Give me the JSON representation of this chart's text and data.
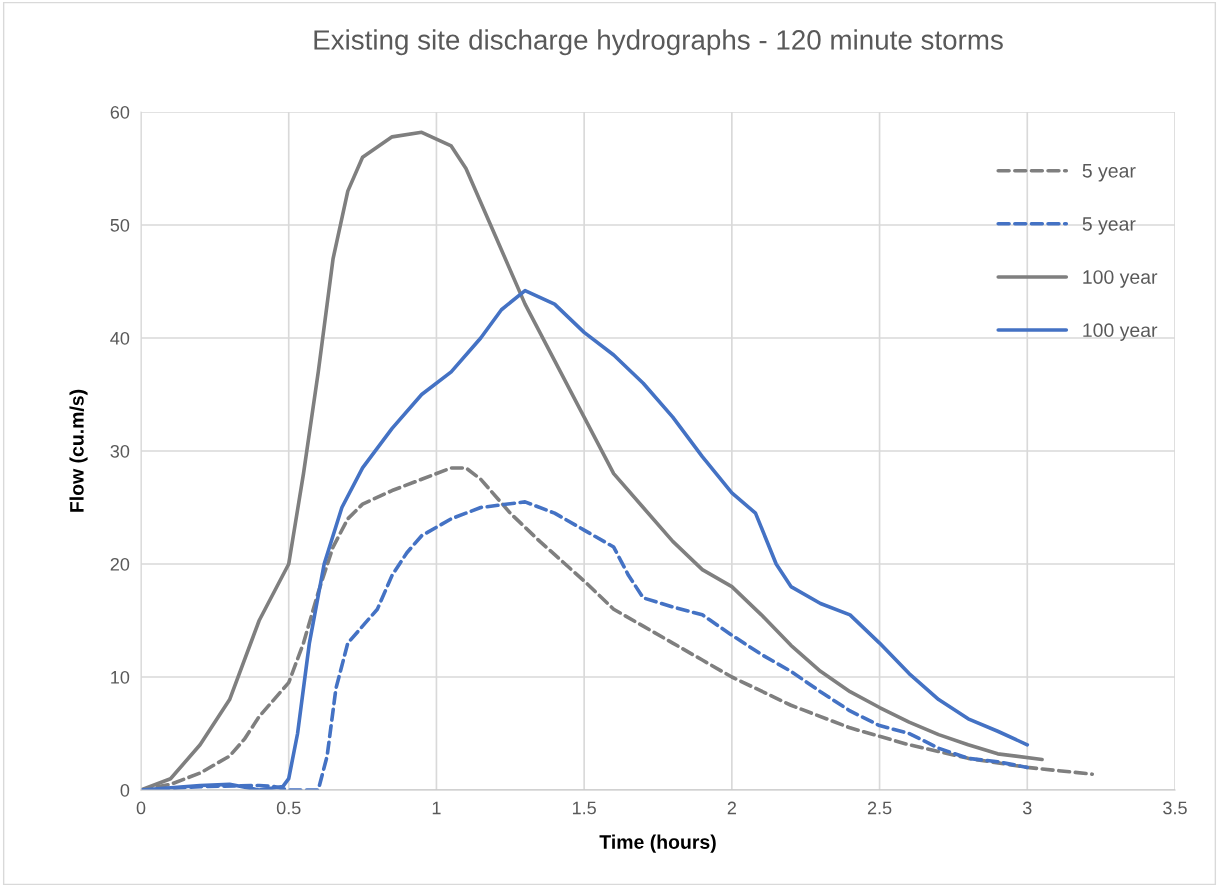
{
  "chart_data": {
    "type": "line",
    "title": "Existing site discharge hydrographs - 120 minute storms",
    "xlabel": "Time (hours)",
    "ylabel": "Flow (cu.m/s)",
    "xlim": [
      0,
      3.5
    ],
    "xticks": [
      0,
      0.5,
      1,
      1.5,
      2,
      2.5,
      3,
      3.5
    ],
    "ylim": [
      0,
      60
    ],
    "yticks": [
      0,
      10,
      20,
      30,
      40,
      50,
      60
    ],
    "grid": true,
    "legend": "right",
    "marker": "none",
    "series": [
      {
        "name": "5 year",
        "color": "#7f7f7f",
        "line_style": "dashed",
        "x": [
          0,
          0.1,
          0.2,
          0.3,
          0.35,
          0.4,
          0.5,
          0.55,
          0.6,
          0.65,
          0.7,
          0.75,
          0.85,
          0.95,
          1.05,
          1.1,
          1.15,
          1.25,
          1.35,
          1.5,
          1.6,
          1.7,
          1.8,
          1.9,
          2.0,
          2.2,
          2.4,
          2.6,
          2.8,
          3.0,
          3.22
        ],
        "values": [
          0,
          0.5,
          1.5,
          3,
          4.5,
          6.5,
          9.5,
          13,
          17.5,
          21.5,
          24,
          25.3,
          26.5,
          27.5,
          28.5,
          28.5,
          27.5,
          24.5,
          22,
          18.5,
          16,
          14.5,
          13,
          11.5,
          10,
          7.5,
          5.5,
          4,
          2.8,
          2,
          1.4
        ]
      },
      {
        "name": "5 year",
        "color": "#4472c4",
        "line_style": "dashed",
        "x": [
          0,
          0.2,
          0.4,
          0.45,
          0.5,
          0.6,
          0.63,
          0.66,
          0.7,
          0.75,
          0.8,
          0.85,
          0.9,
          0.95,
          1.05,
          1.15,
          1.3,
          1.4,
          1.5,
          1.6,
          1.65,
          1.7,
          1.8,
          1.9,
          2.0,
          2.1,
          2.2,
          2.3,
          2.4,
          2.5,
          2.6,
          2.7,
          2.8,
          2.9,
          3.0
        ],
        "values": [
          0,
          0.3,
          0.4,
          0.3,
          0,
          0,
          3,
          9,
          13,
          14.5,
          16,
          19,
          21,
          22.5,
          24,
          25,
          25.5,
          24.5,
          23,
          21.5,
          19,
          17,
          16.2,
          15.5,
          13.7,
          12,
          10.5,
          8.7,
          7,
          5.7,
          5,
          3.7,
          2.8,
          2.5,
          2
        ]
      },
      {
        "name": "100 year",
        "color": "#7f7f7f",
        "line_style": "solid",
        "x": [
          0,
          0.1,
          0.2,
          0.3,
          0.4,
          0.5,
          0.55,
          0.6,
          0.65,
          0.7,
          0.75,
          0.85,
          0.95,
          1.05,
          1.1,
          1.2,
          1.3,
          1.4,
          1.5,
          1.6,
          1.7,
          1.8,
          1.9,
          2.0,
          2.1,
          2.2,
          2.3,
          2.4,
          2.5,
          2.6,
          2.7,
          2.8,
          2.9,
          3.05
        ],
        "values": [
          0,
          1,
          4,
          8,
          15,
          20,
          28,
          37,
          47,
          53,
          56,
          57.8,
          58.2,
          57,
          55,
          49,
          43,
          38,
          33,
          28,
          25,
          22,
          19.5,
          18,
          15.5,
          12.8,
          10.5,
          8.7,
          7.3,
          6,
          4.9,
          4,
          3.2,
          2.7
        ]
      },
      {
        "name": "100 year",
        "color": "#4472c4",
        "line_style": "solid",
        "x": [
          0,
          0.2,
          0.3,
          0.4,
          0.48,
          0.5,
          0.53,
          0.57,
          0.62,
          0.68,
          0.75,
          0.85,
          0.95,
          1.05,
          1.15,
          1.22,
          1.3,
          1.4,
          1.5,
          1.6,
          1.7,
          1.8,
          1.9,
          2.0,
          2.08,
          2.15,
          2.2,
          2.3,
          2.4,
          2.5,
          2.6,
          2.7,
          2.8,
          2.9,
          3.0
        ],
        "values": [
          0,
          0.4,
          0.5,
          0,
          0.3,
          1,
          5,
          13,
          20,
          25,
          28.5,
          32,
          35,
          37,
          40,
          42.5,
          44.2,
          43,
          40.5,
          38.5,
          36,
          33,
          29.5,
          26.3,
          24.5,
          20,
          18,
          16.5,
          15.5,
          13,
          10.3,
          8,
          6.3,
          5.2,
          4
        ]
      }
    ]
  }
}
